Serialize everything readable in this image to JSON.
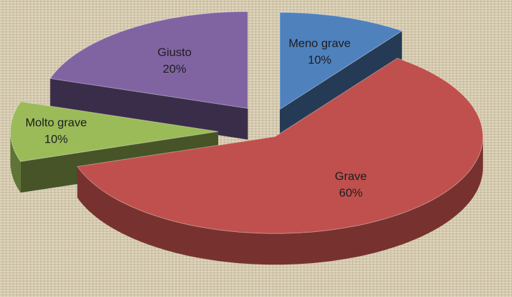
{
  "chart_data": {
    "type": "pie",
    "categories": [
      "Meno grave",
      "Grave",
      "Molto grave",
      "Giusto"
    ],
    "values": [
      10,
      60,
      10,
      20
    ],
    "value_labels": [
      "10%",
      "60%",
      "10%",
      "20%"
    ],
    "colors": [
      "#4f81bd",
      "#c0504d",
      "#9bbb59",
      "#8064a2"
    ]
  }
}
